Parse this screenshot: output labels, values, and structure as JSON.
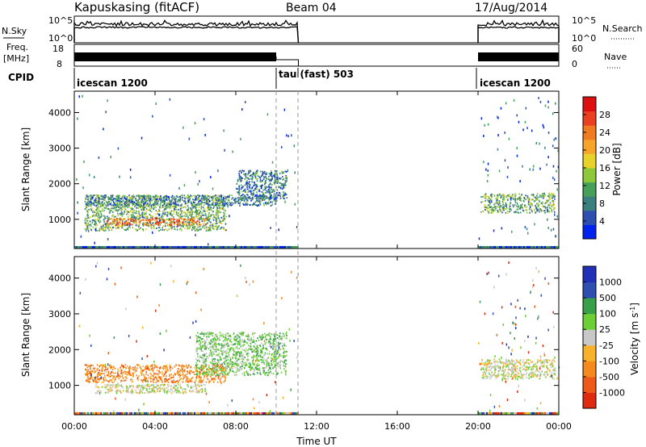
{
  "header": {
    "station": "Kapuskasing (fitACF)",
    "beam": "Beam 04",
    "date": "17/Aug/2014"
  },
  "time_axis": {
    "label": "Time UT",
    "ticks": [
      "00:00",
      "04:00",
      "08:00",
      "12:00",
      "16:00",
      "20:00",
      "00:00"
    ],
    "range_hours": [
      0,
      24
    ]
  },
  "nsky_panel": {
    "left_label": "N.Sky",
    "left_ticks": [
      "10^5",
      "10^0"
    ],
    "right_label": "N.Search",
    "right_ticks": [
      "10^5",
      "10^0"
    ]
  },
  "freq_panel": {
    "left_label_1": "Freq.",
    "left_label_2": "[MHz]",
    "left_ticks": [
      "18",
      "8"
    ],
    "right_label": "Nave",
    "right_ticks": [
      "60",
      "0"
    ]
  },
  "cpid_panel": {
    "label": "CPID",
    "modes": [
      {
        "name": "icescan 1200",
        "start": 0,
        "end": 10.0
      },
      {
        "name": "tau (fast) 503",
        "start": 10.0,
        "end": 11.1
      },
      {
        "name": "icescan 1200",
        "start": 20.0,
        "end": 24.0
      }
    ]
  },
  "data_windows": [
    {
      "start": 0.0,
      "end": 11.1
    },
    {
      "start": 20.0,
      "end": 24.0
    }
  ],
  "chart_data": [
    {
      "type": "heatmap",
      "title": "",
      "ylabel": "Slant Range [km]",
      "ylim": [
        180,
        4600
      ],
      "yticks": [
        "1000",
        "2000",
        "3000",
        "4000"
      ],
      "colorbar": {
        "label": "Power [dB]",
        "ticks": [
          "4",
          "8",
          "12",
          "16",
          "20",
          "24",
          "28"
        ],
        "range": [
          0,
          32
        ],
        "colors": [
          "#0022ee",
          "#2f4fb0",
          "#3c7f7f",
          "#46a05a",
          "#8cc83a",
          "#e8d22a",
          "#f7a52a",
          "#f07a20",
          "#ea4020",
          "#dd1010"
        ]
      },
      "bands": [
        {
          "t": [
            0.5,
            7.5
          ],
          "r": [
            700,
            1700
          ],
          "v": 10
        },
        {
          "t": [
            1.5,
            6.5
          ],
          "r": [
            850,
            1050
          ],
          "v": 22
        },
        {
          "t": [
            0.5,
            10
          ],
          "r": [
            1400,
            1700
          ],
          "v": 6
        },
        {
          "t": [
            8,
            10.5
          ],
          "r": [
            1600,
            2400
          ],
          "v": 6
        },
        {
          "t": [
            20.1,
            23.8
          ],
          "r": [
            1200,
            1750
          ],
          "v": 10
        }
      ]
    },
    {
      "type": "heatmap",
      "title": "",
      "ylabel": "Slant Range [km]",
      "ylim": [
        180,
        4600
      ],
      "yticks": [
        "1000",
        "2000",
        "3000",
        "4000"
      ],
      "colorbar": {
        "label": "Velocity [m s^-1]",
        "ticks": [
          "1000",
          "500",
          "100",
          "25",
          "-25",
          "-100",
          "-500",
          "-1000"
        ],
        "colors": [
          "#2030b8",
          "#2f4fb0",
          "#39a04a",
          "#6ccf35",
          "#c8c8c8",
          "#f7b22a",
          "#f48a1e",
          "#ee5a18",
          "#e02a10"
        ]
      },
      "bands": [
        {
          "t": [
            0.5,
            7.5
          ],
          "r": [
            1100,
            1600
          ],
          "v": -100
        },
        {
          "t": [
            1.0,
            6.5
          ],
          "r": [
            800,
            1050
          ],
          "v": -25
        },
        {
          "t": [
            6.0,
            10.5
          ],
          "r": [
            1300,
            2500
          ],
          "v": 100
        },
        {
          "t": [
            20.1,
            23.8
          ],
          "r": [
            1200,
            1750
          ],
          "v": -25
        }
      ]
    }
  ]
}
